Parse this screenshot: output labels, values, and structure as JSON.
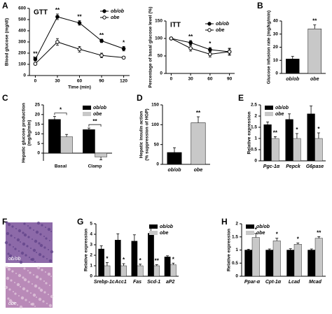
{
  "chart_data": [
    {
      "panel": "A",
      "type": "line",
      "title": "GTT",
      "xlabel": "Time (min)",
      "ylabel": "Blood glucose (mg/dl)",
      "x": [
        0,
        30,
        60,
        90,
        120
      ],
      "xlim": [
        -8,
        128
      ],
      "xticks": [
        0,
        30,
        60,
        90,
        120
      ],
      "ylim": [
        0,
        600
      ],
      "yticks": [
        0,
        100,
        200,
        300,
        400,
        500,
        600
      ],
      "legend": "upper right",
      "series": [
        {
          "name": "ob/ob",
          "color": "#000000",
          "marker": "filled",
          "values": [
            145,
            525,
            470,
            310,
            240
          ],
          "errors": [
            15,
            25,
            20,
            15,
            20
          ],
          "significance": [
            "**",
            "**",
            "**",
            "**",
            "*"
          ]
        },
        {
          "name": "obe",
          "color": "#000000",
          "marker": "open",
          "values": [
            105,
            300,
            235,
            180,
            160
          ],
          "errors": [
            12,
            30,
            25,
            20,
            10
          ],
          "significance": [
            "**",
            null,
            null,
            null,
            null
          ]
        }
      ]
    },
    {
      "type": "line",
      "title": "ITT",
      "ylabel": "Percentage of basal glucose level (%)",
      "x": [
        0,
        30,
        60,
        90
      ],
      "xlim": [
        -8,
        98
      ],
      "xticks": [
        0,
        30,
        60,
        90
      ],
      "ylim": [
        0,
        150
      ],
      "yticks": [
        0,
        50,
        100,
        150
      ],
      "legend": "upper right",
      "series": [
        {
          "name": "ob/ob",
          "color": "#000000",
          "marker": "filled",
          "values": [
            100,
            88,
            68,
            62
          ],
          "errors": [
            2,
            6,
            6,
            8
          ],
          "significance": [
            null,
            "**",
            "*",
            null
          ]
        },
        {
          "name": "obe",
          "color": "#000000",
          "marker": "open",
          "values": [
            100,
            72,
            55,
            62
          ],
          "errors": [
            2,
            8,
            8,
            10
          ]
        }
      ]
    },
    {
      "panel": "B",
      "type": "bar",
      "ylabel": "Glucose infusion rate (mg/kg/min)",
      "categories": [
        "ob/ob",
        "obe"
      ],
      "values": [
        11,
        34
      ],
      "errors": [
        2,
        3
      ],
      "colors": [
        "#000000",
        "#c8c8c8"
      ],
      "significance": [
        null,
        "**"
      ],
      "ylim": [
        0,
        40
      ],
      "yticks": [
        0,
        10,
        20,
        30,
        40
      ]
    },
    {
      "panel": "C",
      "type": "grouped_bar",
      "ylabel": [
        "Hepatic glucose production",
        "(mg/kg/min)"
      ],
      "categories": [
        "Basal",
        "Clamp"
      ],
      "ylim": [
        -4,
        25
      ],
      "yticks": [
        0,
        5,
        10,
        15,
        20,
        25
      ],
      "legend": "upper right",
      "significance": [
        "*",
        "**"
      ],
      "series": [
        {
          "name": "ob/ob",
          "color": "#000000",
          "values": [
            17.5,
            12.2
          ],
          "errors": [
            1.5,
            0.8
          ]
        },
        {
          "name": "obe",
          "color": "#c8c8c8",
          "values": [
            8.5,
            -2
          ],
          "errors": [
            1.2,
            1.5
          ]
        }
      ]
    },
    {
      "panel": "D",
      "type": "bar",
      "ylabel": [
        "Hepatic insulin action",
        "(% suppression of HGP)"
      ],
      "categories": [
        "ob/ob",
        "obe"
      ],
      "values": [
        30,
        105
      ],
      "errors": [
        12,
        15
      ],
      "colors": [
        "#000000",
        "#c8c8c8"
      ],
      "significance": [
        null,
        "**"
      ],
      "ylim": [
        0,
        150
      ],
      "yticks": [
        0,
        50,
        100,
        150
      ]
    },
    {
      "panel": "E",
      "type": "grouped_bar",
      "ylabel": "Relative expression",
      "categories": [
        "Pgc-1α",
        "Pepck",
        "G6pase"
      ],
      "ylim": [
        0,
        2.5
      ],
      "yticks": [
        0,
        0.5,
        1,
        1.5,
        2,
        2.5
      ],
      "legend": "upper left",
      "series": [
        {
          "name": "ob/ob",
          "color": "#000000",
          "values": [
            1.62,
            1.85,
            2.1
          ],
          "errors": [
            0.12,
            0.25,
            0.35
          ]
        },
        {
          "name": "obe",
          "color": "#c8c8c8",
          "values": [
            1.0,
            1.0,
            1.0
          ],
          "errors": [
            0.08,
            0.22,
            0.25
          ],
          "significance": [
            "**",
            "*",
            "*"
          ]
        }
      ]
    },
    {
      "panel": "F",
      "type": "image",
      "labels": [
        "ob/ob",
        "obe"
      ]
    },
    {
      "panel": "G",
      "type": "grouped_bar",
      "ylabel": "Relative expression",
      "categories": [
        "Srebp-1c",
        "Acc1",
        "Fas",
        "Scd-1",
        "aP2"
      ],
      "ylim": [
        0,
        5
      ],
      "yticks": [
        0,
        1,
        2,
        3,
        4,
        5
      ],
      "legend": "upper right",
      "series": [
        {
          "name": "ob/ob",
          "color": "#000000",
          "values": [
            2.6,
            3.45,
            3.35,
            4.1,
            1.85
          ],
          "errors": [
            0.3,
            0.6,
            0.6,
            0.8,
            0.1
          ]
        },
        {
          "name": "obe",
          "color": "#c8c8c8",
          "values": [
            1.0,
            1.0,
            1.0,
            1.0,
            1.1
          ],
          "errors": [
            0.3,
            0.2,
            0.15,
            0.1,
            0.15
          ],
          "significance": [
            "*",
            "*",
            "*",
            "**",
            "*"
          ]
        }
      ]
    },
    {
      "panel": "H",
      "type": "grouped_bar",
      "ylabel": "Relative expression",
      "categories": [
        "Ppar-α",
        "Cpt-1α",
        "Lcad",
        "Mcad"
      ],
      "ylim": [
        0,
        2
      ],
      "yticks": [
        0,
        0.5,
        1,
        1.5,
        2
      ],
      "legend": "upper left",
      "series": [
        {
          "name": "ob/ob",
          "color": "#000000",
          "values": [
            1,
            1,
            1,
            1
          ],
          "errors": [
            0.03,
            0.04,
            0.05,
            0.04
          ]
        },
        {
          "name": "obe",
          "color": "#c8c8c8",
          "values": [
            1.48,
            1.35,
            1.22,
            1.45
          ],
          "errors": [
            0.15,
            0.1,
            0.05,
            0.06
          ],
          "significance": [
            "*",
            "*",
            "*",
            "**"
          ]
        }
      ]
    }
  ]
}
